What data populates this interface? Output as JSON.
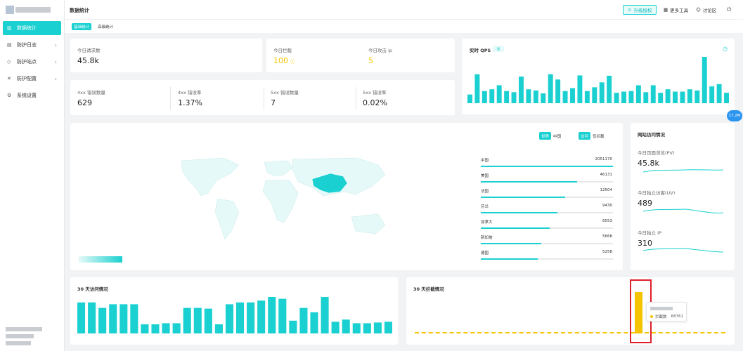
{
  "colors": {
    "accent": "#1ad0d0",
    "yellow": "#f5c400",
    "red": "#e0202a",
    "blue": "#2b95f0"
  },
  "header": {
    "title": "数据统计",
    "upgrade": "升级授权",
    "more_tools": "更多工具",
    "forum": "讨论区"
  },
  "sidebar": {
    "items": [
      {
        "label": "数据统计",
        "icon": "bar-chart-icon",
        "active": true
      },
      {
        "label": "防护日志",
        "icon": "document-icon",
        "chevron": "›"
      },
      {
        "label": "防护站点",
        "icon": "shield-icon",
        "chevron": "›"
      },
      {
        "label": "防护配置",
        "icon": "tools-icon",
        "chevron": "›"
      },
      {
        "label": "系统设置",
        "icon": "gear-icon"
      }
    ]
  },
  "subtabs": [
    "基础统计",
    "高级统计"
  ],
  "stats": {
    "requests": {
      "label": "今日请求数",
      "value": "45.8k"
    },
    "blocked": {
      "label": "今日拦截",
      "value": "100"
    },
    "attack_ip": {
      "label": "今日攻击 ip",
      "value": "5"
    },
    "e4xx": {
      "label": "4xx 错误数量",
      "value": "629"
    },
    "e4xx_rate": {
      "label": "4xx 错误率",
      "value": "1.37%"
    },
    "e5xx": {
      "label": "5xx 错误数量",
      "value": "7"
    },
    "e5xx_rate": {
      "label": "5xx 错误率",
      "value": "0.02%"
    }
  },
  "qps": {
    "title": "实时 QPS",
    "values": [
      30,
      100,
      42,
      48,
      62,
      42,
      38,
      92,
      48,
      44,
      34,
      100,
      82,
      42,
      52,
      96,
      42,
      55,
      72,
      95,
      36,
      40,
      42,
      62,
      38,
      62,
      36,
      48,
      40,
      40,
      48,
      44,
      160,
      58,
      66,
      36
    ]
  },
  "map": {
    "toggle1": [
      "世界",
      "中国"
    ],
    "toggle2": [
      "访问",
      "仅拦截"
    ],
    "countries": [
      {
        "name": "中国",
        "value": "2051170",
        "pct": 100
      },
      {
        "name": "美国",
        "value": "46131",
        "pct": 73
      },
      {
        "name": "法国",
        "value": "12504",
        "pct": 64
      },
      {
        "name": "芬兰",
        "value": "9430",
        "pct": 58
      },
      {
        "name": "加拿大",
        "value": "6553",
        "pct": 52
      },
      {
        "name": "新加坡",
        "value": "5668",
        "pct": 46
      },
      {
        "name": "德国",
        "value": "5258",
        "pct": 43
      }
    ]
  },
  "site": {
    "title": "网站访问情况",
    "pv": {
      "label": "今日页面浏览(PV)",
      "value": "45.8k"
    },
    "uv": {
      "label": "今日独立访客(UV)",
      "value": "489"
    },
    "ip": {
      "label": "今日独立 IP",
      "value": "310"
    }
  },
  "visits30": {
    "title": "30 天访问情况",
    "values": [
      85,
      85,
      70,
      80,
      80,
      80,
      25,
      25,
      28,
      28,
      70,
      70,
      68,
      25,
      80,
      85,
      85,
      90,
      100,
      95,
      35,
      70,
      58,
      100,
      32,
      38,
      28,
      28,
      30,
      32
    ]
  },
  "blocks30": {
    "title": "30 天拦截情况",
    "tooltip_label": "拦截数",
    "tooltip_value": "68761"
  },
  "float_badge": "17.2M"
}
